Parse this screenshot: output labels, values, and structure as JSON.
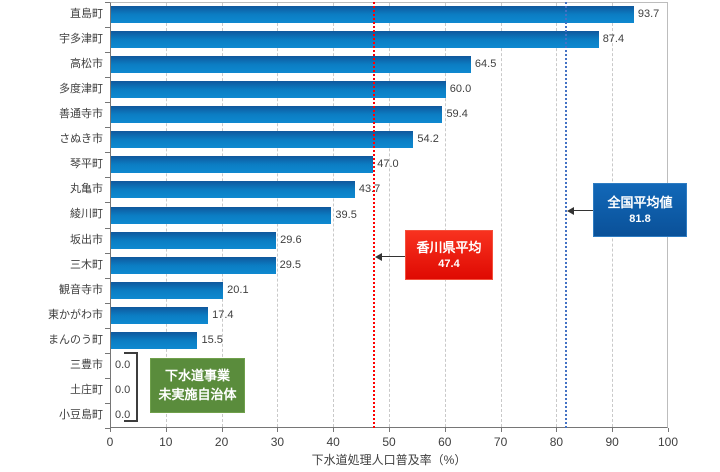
{
  "chart_data": {
    "type": "bar",
    "orientation": "horizontal",
    "xlabel": "下水道処理人口普及率（%）",
    "xlim": [
      0,
      100
    ],
    "x_ticks": [
      0,
      10,
      20,
      30,
      40,
      50,
      60,
      70,
      80,
      90,
      100
    ],
    "grid": "vertical-dashed",
    "legend": "none",
    "categories": [
      "直島町",
      "宇多津町",
      "高松市",
      "多度津町",
      "善通寺市",
      "さぬき市",
      "琴平町",
      "丸亀市",
      "綾川町",
      "坂出市",
      "三木町",
      "観音寺市",
      "東かがわ市",
      "まんのう町",
      "三豊市",
      "土庄町",
      "小豆島町"
    ],
    "values": [
      93.7,
      87.4,
      64.5,
      60.0,
      59.4,
      54.2,
      47.0,
      43.7,
      39.5,
      29.6,
      29.5,
      20.1,
      17.4,
      15.5,
      0.0,
      0.0,
      0.0
    ],
    "value_labels": [
      "93.7",
      "87.4",
      "64.5",
      "60.0",
      "59.4",
      "54.2",
      "47.0",
      "43.7",
      "39.5",
      "29.6",
      "29.5",
      "20.1",
      "17.4",
      "15.5",
      "0.0",
      "0.0",
      "0.0"
    ],
    "bar_colors": {
      "top": "#10579c",
      "middle": "#0b7dc3",
      "bottom": "#0e89d0"
    },
    "reference_lines": [
      {
        "name": "kagawa-average",
        "value": 47.4,
        "color": "#ff0000",
        "style": "dotted"
      },
      {
        "name": "national-average",
        "value": 81.8,
        "color": "#4472c4",
        "style": "dotted"
      }
    ]
  },
  "annotations": {
    "national_average": {
      "title": "全国平均値",
      "value": "81.8",
      "bg": "#0d5aa7"
    },
    "kagawa_average": {
      "title": "香川県平均",
      "value": "47.4",
      "bg": "#e8140f"
    },
    "no_sewer_note": {
      "line1": "下水道事業",
      "line2": "未実施自治体",
      "bg": "#5a8c3c",
      "applies_to": [
        "三豊市",
        "土庄町",
        "小豆島町"
      ]
    }
  }
}
